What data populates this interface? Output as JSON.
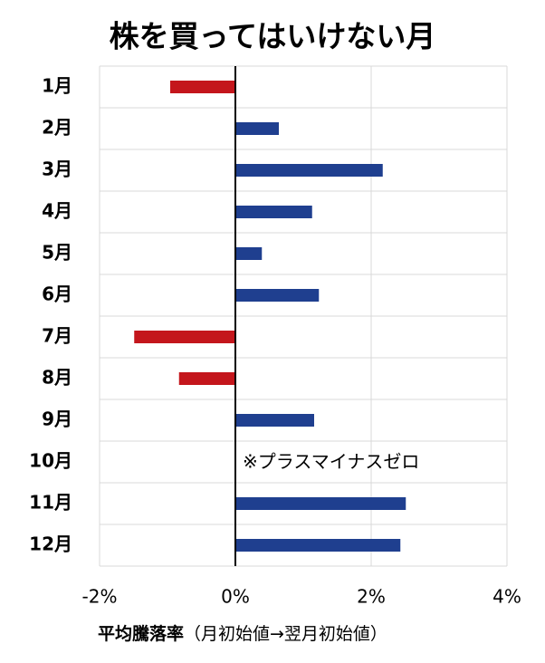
{
  "chart_data": {
    "type": "bar",
    "orientation": "horizontal",
    "title": "株を買ってはいけない月",
    "categories": [
      "1月",
      "2月",
      "3月",
      "4月",
      "5月",
      "6月",
      "7月",
      "8月",
      "9月",
      "10月",
      "11月",
      "12月"
    ],
    "values": [
      -0.96,
      0.64,
      2.17,
      1.13,
      0.39,
      1.23,
      -1.49,
      -0.83,
      1.16,
      0,
      2.51,
      2.43
    ],
    "color": "#1f3f8f",
    "negative_color": "#c4161c",
    "xlim": [
      -2,
      4
    ],
    "xticks": [
      {
        "value": -2,
        "label": "-2%"
      },
      {
        "value": 0,
        "label": "0%"
      },
      {
        "value": 2,
        "label": "2%"
      },
      {
        "value": 4,
        "label": "4%"
      }
    ],
    "grid": true,
    "annotation": "※プラスマイナスゼロ",
    "x_label": "平均騰落率",
    "x_label_note": "（月初始値→翌月初始値）"
  }
}
